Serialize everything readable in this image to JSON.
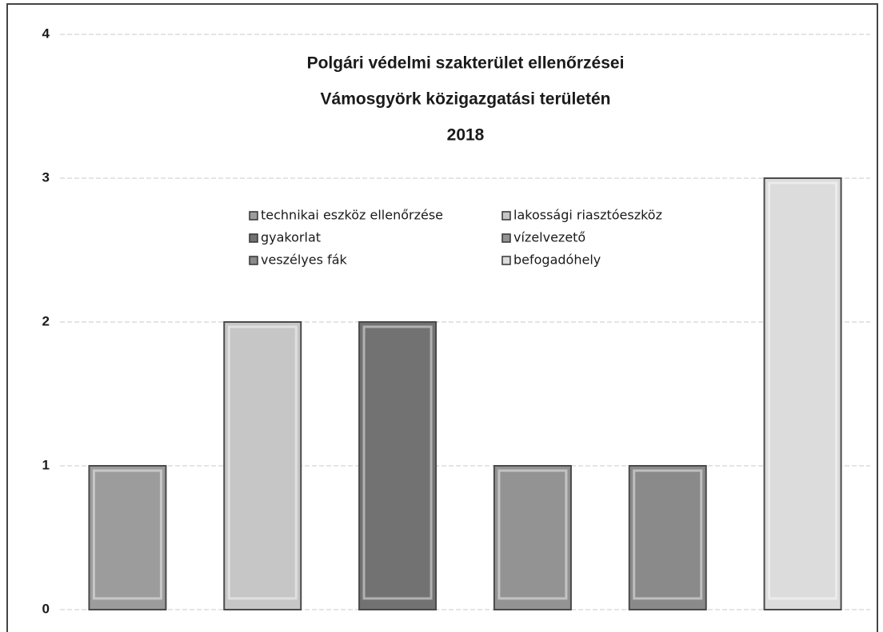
{
  "chart_data": {
    "type": "bar",
    "title": [
      "Polgári védelmi szakterület ellenőrzései",
      "Vámosgyörk közigazgatási területén",
      "2018"
    ],
    "categories": [
      null
    ],
    "series": [
      {
        "name": "technikai eszköz ellenőrzése",
        "color": "#9c9c9c",
        "values": [
          1
        ]
      },
      {
        "name": "lakossági riasztóeszköz",
        "color": "#c6c6c6",
        "values": [
          2
        ]
      },
      {
        "name": "gyakorlat",
        "color": "#727272",
        "values": [
          2
        ]
      },
      {
        "name": "vízelvezető",
        "color": "#939393",
        "values": [
          1
        ]
      },
      {
        "name": "veszélyes fák",
        "color": "#8a8a8a",
        "values": [
          1
        ]
      },
      {
        "name": "befogadóhely",
        "color": "#dcdcdc",
        "values": [
          3
        ]
      }
    ],
    "ylim": [
      0,
      4
    ],
    "yticks": [
      0,
      1,
      2,
      3,
      4
    ],
    "grid": true,
    "legend": "top"
  }
}
